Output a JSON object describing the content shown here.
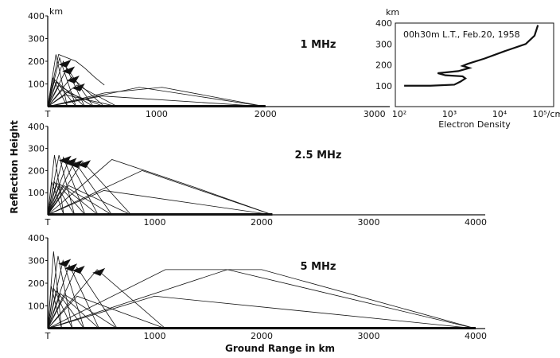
{
  "figure": {
    "ylabel": "Reflection Height",
    "xlabel": "Ground Range in km"
  },
  "chart_data": [
    {
      "type": "line",
      "panel": "1 MHz",
      "title": "1 MHz",
      "y_unit": "km",
      "origin_label": "T",
      "xlim": [
        0,
        3000
      ],
      "ylim": [
        0,
        400
      ],
      "xticks": [
        "T",
        "1000",
        "2000",
        "3000"
      ],
      "yticks": [
        "100",
        "200",
        "300",
        "400"
      ],
      "ray_apex_height": [
        230,
        215,
        200,
        170,
        130,
        95,
        85
      ],
      "ray_ground_range": [
        180,
        260,
        340,
        420,
        520,
        640,
        2000
      ],
      "series": [
        {
          "x": [
            0,
            100,
            180,
            260,
            340,
            430,
            520
          ],
          "y": [
            0,
            230,
            215,
            200,
            170,
            130,
            95
          ]
        },
        {
          "x": [
            0,
            520,
            1050,
            2000
          ],
          "y": [
            0,
            60,
            85,
            0
          ]
        }
      ]
    },
    {
      "type": "line",
      "panel": "electron-density-profile",
      "title": "00h30m L.T., Feb.20, 1958",
      "y_unit": "km",
      "xlabel": "Electron Density",
      "x_scale": "log",
      "xlim": [
        100,
        100000
      ],
      "ylim": [
        0,
        400
      ],
      "xticks": [
        "10²",
        "10³",
        "10⁴",
        "10⁵/cm³"
      ],
      "yticks": [
        "100",
        "200",
        "300",
        "400"
      ],
      "series": [
        {
          "x": [
            150,
            200,
            500,
            1500,
            2000,
            2500,
            2200,
            1000,
            700,
            1800,
            3000,
            2200,
            2800,
            6000,
            15000,
            40000,
            60000,
            70000
          ],
          "y": [
            100,
            100,
            100,
            105,
            120,
            135,
            145,
            150,
            160,
            170,
            185,
            195,
            205,
            230,
            265,
            300,
            340,
            390
          ]
        }
      ]
    },
    {
      "type": "line",
      "panel": "2.5 MHz",
      "title": "2.5 MHz",
      "xlim": [
        0,
        4000
      ],
      "ylim": [
        0,
        400
      ],
      "origin_label": "T",
      "xticks": [
        "T",
        "1000",
        "2000",
        "3000",
        "4000"
      ],
      "yticks": [
        "100",
        "200",
        "300",
        "400"
      ],
      "ray_apex_height": [
        270,
        270,
        260,
        250,
        240,
        240,
        200
      ],
      "ray_ground_range": [
        150,
        250,
        350,
        470,
        600,
        780,
        2100
      ],
      "series": [
        {
          "x": [
            0,
            600,
            1400,
            2100
          ],
          "y": [
            0,
            250,
            120,
            0
          ]
        }
      ]
    },
    {
      "type": "line",
      "panel": "5 MHz",
      "title": "5 MHz",
      "xlim": [
        0,
        4000
      ],
      "ylim": [
        0,
        400
      ],
      "origin_label": "T",
      "xticks": [
        "T",
        "1000",
        "2000",
        "3000",
        "4000"
      ],
      "yticks": [
        "100",
        "200",
        "300",
        "400"
      ],
      "ray_apex_height": [
        340,
        320,
        300,
        280,
        270,
        260,
        260
      ],
      "ray_ground_range": [
        130,
        230,
        340,
        480,
        650,
        1100,
        4000
      ],
      "series": [
        {
          "x": [
            0,
            1100,
            2000,
            4000
          ],
          "y": [
            0,
            260,
            260,
            0
          ]
        }
      ]
    }
  ]
}
